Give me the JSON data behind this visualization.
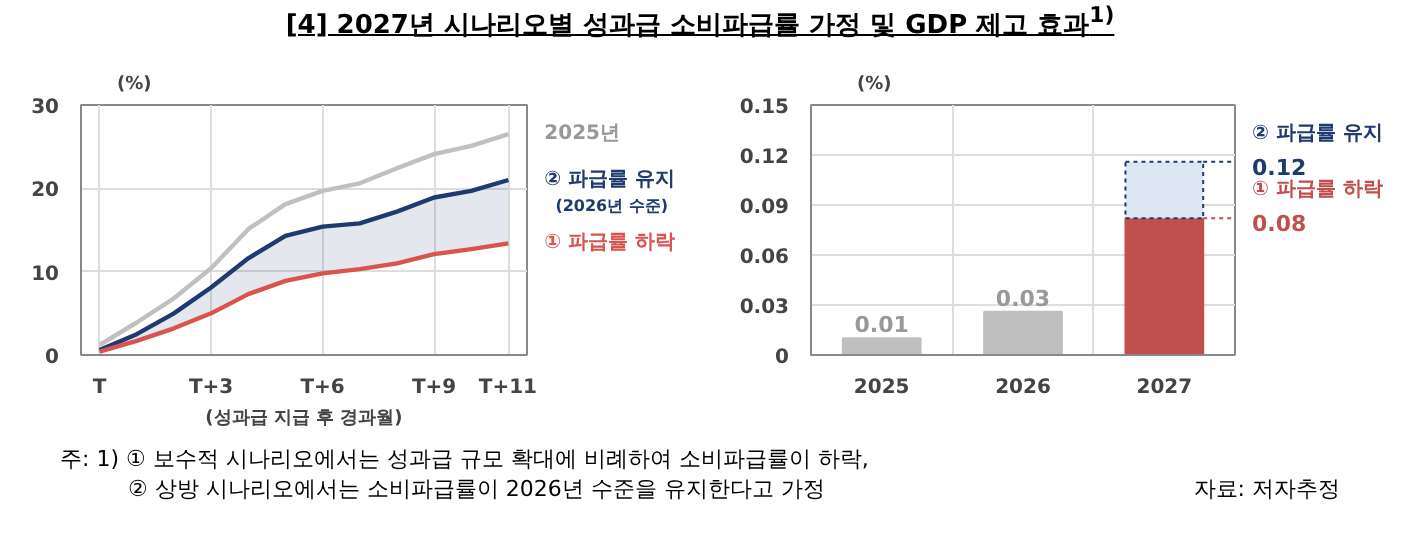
{
  "chart_data": [
    {
      "type": "line",
      "title": "[4] 2027년 시나리오별 성과급 소비파급률 가정 및 GDP 제고 효과$^{1)}$",
      "xlabel": "(성과급 지급 후 경과월)",
      "ylabel": "(%)",
      "categories": [
        "T",
        null,
        null,
        "T+3",
        null,
        null,
        "T+6",
        null,
        null,
        "T+9",
        null,
        "T+11"
      ],
      "ylim": [
        0,
        30
      ],
      "yticks": [
        0,
        10,
        20,
        30
      ],
      "grid": true,
      "series": [
        {
          "name": "2025년",
          "color": "#c0c0c0",
          "values": [
            1.2,
            3.9,
            6.8,
            10.4,
            15.1,
            18.1,
            19.7,
            20.6,
            22.4,
            24.1,
            25.1,
            26.5
          ]
        },
        {
          "name": "② 파급률 유지",
          "color": "#1f3a6e",
          "values": [
            0.6,
            2.5,
            5.0,
            8.1,
            11.6,
            14.3,
            15.4,
            15.8,
            17.2,
            18.9,
            19.7,
            21.0
          ],
          "lower": [
            0.4,
            1.7,
            3.2,
            5.0,
            7.3,
            8.9,
            9.8,
            10.3,
            11.0,
            12.1,
            12.7,
            13.4
          ],
          "upper": [
            0.6,
            2.5,
            5.0,
            8.1,
            11.6,
            14.3,
            15.4,
            15.8,
            17.2,
            18.9,
            19.7,
            21.0
          ]
        },
        {
          "name": "① 파급률 하락",
          "color": "#d9534f",
          "values": [
            0.4,
            1.7,
            3.2,
            5.0,
            7.3,
            8.9,
            9.8,
            10.3,
            11.0,
            12.1,
            12.7,
            13.4
          ]
        }
      ],
      "annotations": [
        "(2026년 수준)",
        "주: 1) ① 보수적 시나리오에서는 성과급 규모 확대에 비례하여 소비파급률이 하락,",
        "② 상방 시나리오에서는 소비파급률이 2026년 수준을 유지한다고 가정",
        "자료: 저자추정"
      ]
    },
    {
      "type": "bar",
      "stacked": true,
      "ylabel": "(%)",
      "categories": [
        "2025",
        "2026",
        "2027"
      ],
      "ylim": [
        0,
        0.15
      ],
      "yticks": [
        0,
        0.03,
        0.06,
        0.09,
        0.12,
        0.15
      ],
      "grid": true,
      "series": [
        {
          "color": "#bfbfbf",
          "values": [
            0.01,
            0.026,
            null
          ],
          "value_labels": [
            "0.01",
            "0.03",
            null
          ]
        },
        {
          "name": "① 파급률 하락",
          "color": "#c0504d",
          "values": [
            null,
            null,
            0.082
          ],
          "value_labels": [
            null,
            null,
            "0.08"
          ]
        },
        {
          "name": "② 파급률 유지",
          "color": "#dce6f2",
          "values": [
            null,
            null,
            0.034
          ]
        }
      ],
      "totals": [
        null,
        null,
        "0.12"
      ]
    }
  ]
}
